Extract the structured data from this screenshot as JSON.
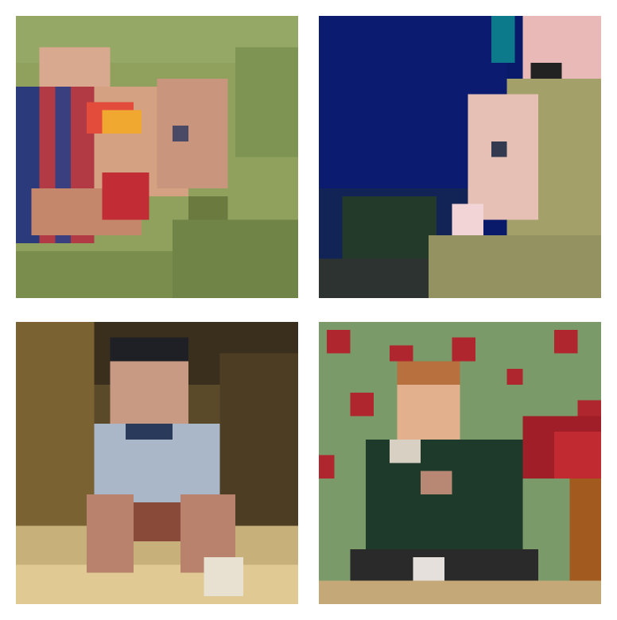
{
  "grid": {
    "tiles": [
      {
        "id": "child-lying-on-grass",
        "palette": {
          "bg": "#8fa15c",
          "accent": "#b23a45",
          "skin": "#d9a98f"
        }
      },
      {
        "id": "child-with-candle",
        "palette": {
          "bg": "#0a1a6b",
          "accent": "#f2d4d6",
          "skin": "#e6c0b4"
        }
      },
      {
        "id": "child-sitting-on-floor",
        "palette": {
          "bg": "#5b4a2a",
          "accent": "#a9b7c8",
          "skin": "#c99a83"
        }
      },
      {
        "id": "child-in-green-outfit",
        "palette": {
          "bg": "#7a9a6a",
          "accent": "#b0262e",
          "skin": "#e3b08d"
        }
      }
    ]
  }
}
